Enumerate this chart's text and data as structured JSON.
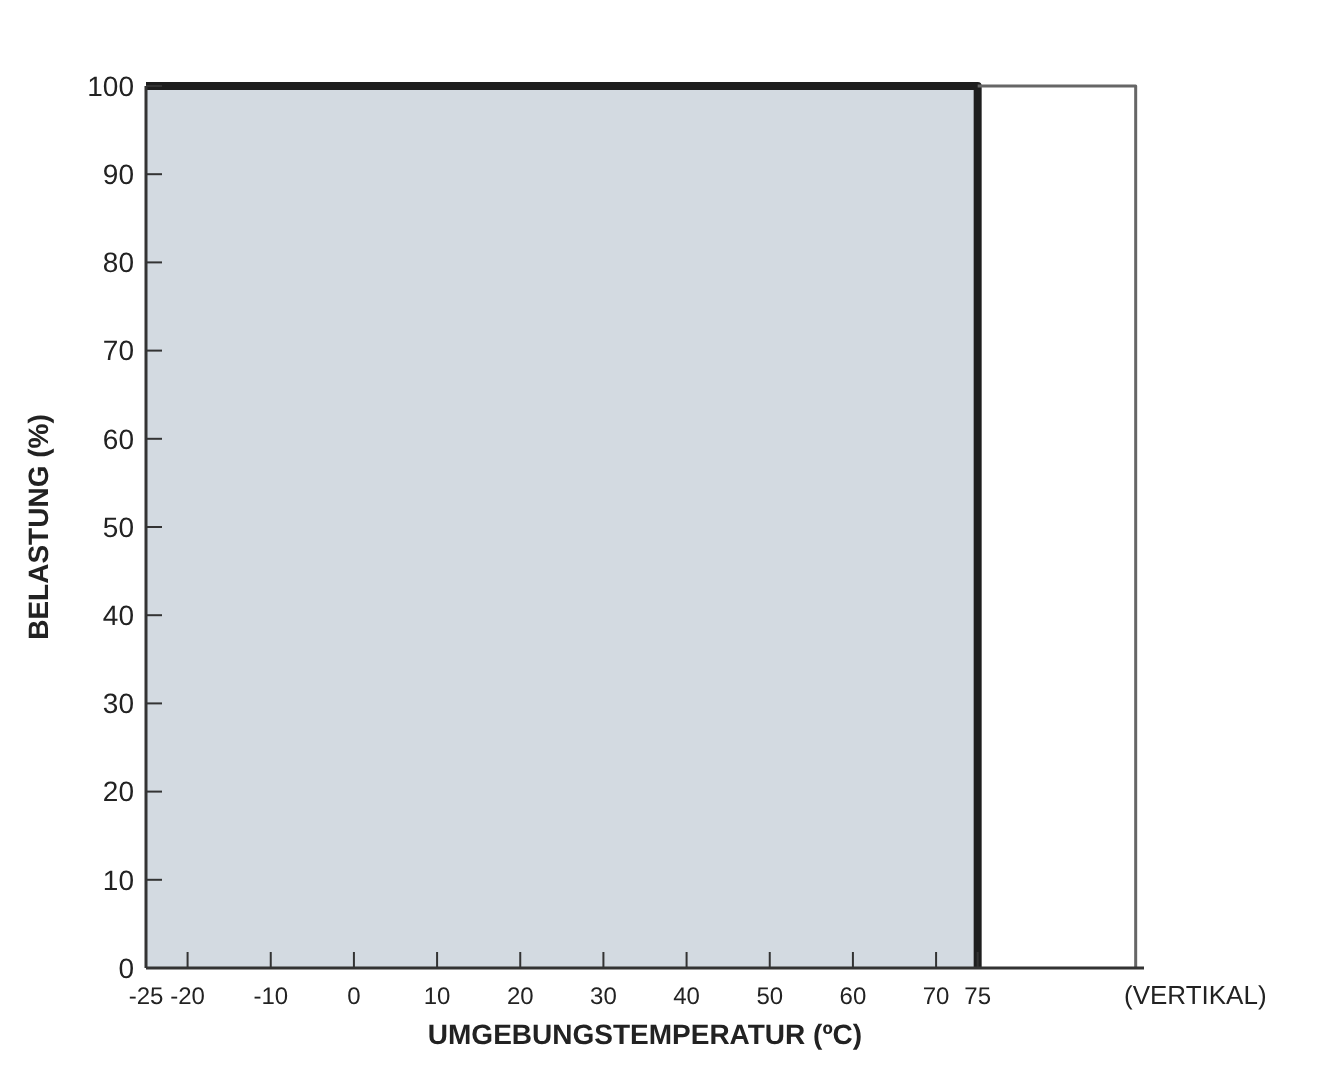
{
  "chart_data": {
    "type": "area",
    "xlabel": "UMGEBUNGSTEMPERATUR (ºC)",
    "ylabel": "BELASTUNG (%)",
    "xlim": [
      -25,
      95
    ],
    "xticks": [
      -25,
      -20,
      -10,
      0,
      10,
      20,
      30,
      40,
      50,
      60,
      70,
      75
    ],
    "ylim": [
      0,
      100
    ],
    "yticks": [
      0,
      10,
      20,
      30,
      40,
      50,
      60,
      70,
      80,
      90,
      100
    ],
    "series": [
      {
        "color": "#d3dae1",
        "x": [
          -25,
          75,
          75
        ],
        "values": [
          100,
          100,
          0
        ]
      },
      {
        "type": "line",
        "color": "#666666",
        "x": [
          75,
          94,
          94
        ],
        "values": [
          100,
          100,
          0
        ]
      }
    ],
    "annotations": [
      {
        "text": "(VERTIKAL)",
        "x": 95,
        "y": 0
      }
    ],
    "grid": false
  }
}
